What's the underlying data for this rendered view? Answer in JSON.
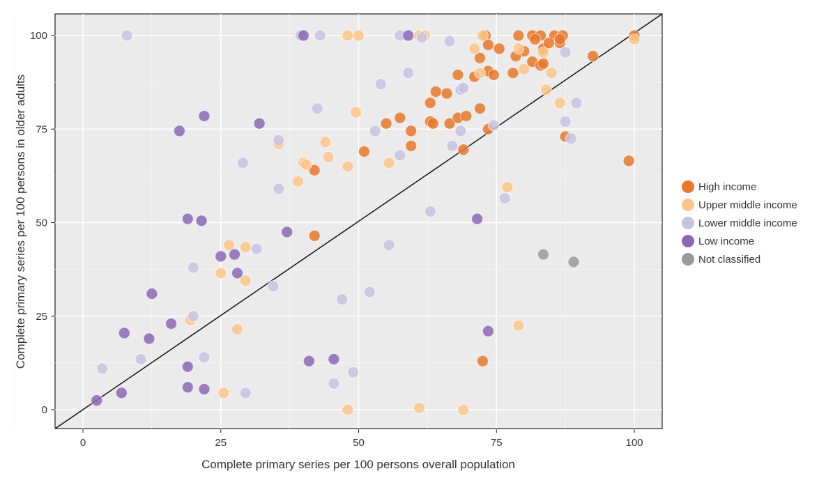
{
  "chart_data": {
    "type": "scatter",
    "title": "",
    "xlabel": "Complete primary series per 100 persons overall population",
    "ylabel": "Complete primary series per 100 persons in older adults",
    "xlim": [
      -5,
      105
    ],
    "ylim": [
      -5,
      106
    ],
    "xticks": [
      0,
      25,
      50,
      75,
      100
    ],
    "yticks": [
      0,
      25,
      50,
      75,
      100
    ],
    "grid": true,
    "reference_line": "y = x",
    "legend_placement": "right",
    "series": [
      {
        "name": "High income",
        "color": "#E8782C",
        "points": [
          [
            73,
            100
          ],
          [
            79,
            100
          ],
          [
            81.5,
            100
          ],
          [
            83,
            100
          ],
          [
            85.5,
            100
          ],
          [
            87,
            100
          ],
          [
            100,
            100
          ],
          [
            73.5,
            97.5
          ],
          [
            75.5,
            96.5
          ],
          [
            80,
            95.8
          ],
          [
            82,
            99
          ],
          [
            83.5,
            96.5
          ],
          [
            84.5,
            98
          ],
          [
            86.5,
            98
          ],
          [
            86.5,
            99
          ],
          [
            72,
            94
          ],
          [
            78.5,
            94.5
          ],
          [
            81.5,
            93
          ],
          [
            83,
            92
          ],
          [
            83.5,
            92.5
          ],
          [
            92.5,
            94.5
          ],
          [
            73.5,
            90.5
          ],
          [
            74.5,
            89.5
          ],
          [
            78,
            90
          ],
          [
            68,
            89.5
          ],
          [
            71,
            89
          ],
          [
            64,
            85
          ],
          [
            66,
            84.5
          ],
          [
            63,
            82
          ],
          [
            57.5,
            78
          ],
          [
            55,
            76.5
          ],
          [
            59.5,
            74.5
          ],
          [
            63,
            77
          ],
          [
            63.5,
            76.5
          ],
          [
            66.5,
            76.5
          ],
          [
            68,
            78
          ],
          [
            69.5,
            78.5
          ],
          [
            72,
            80.5
          ],
          [
            73.5,
            75
          ],
          [
            59.5,
            70.5
          ],
          [
            51,
            69
          ],
          [
            69,
            69.5
          ],
          [
            42,
            64
          ],
          [
            42,
            46.5
          ],
          [
            87.5,
            73
          ],
          [
            99,
            66.5
          ],
          [
            72.5,
            13
          ]
        ]
      },
      {
        "name": "Upper middle  income",
        "color": "#FBC68A",
        "points": [
          [
            48,
            100
          ],
          [
            50,
            100
          ],
          [
            61,
            100
          ],
          [
            62,
            100
          ],
          [
            72.5,
            100
          ],
          [
            71,
            96.5
          ],
          [
            79,
            96.5
          ],
          [
            83.5,
            95.5
          ],
          [
            72,
            90
          ],
          [
            80,
            91
          ],
          [
            85,
            90
          ],
          [
            84,
            85.5
          ],
          [
            86.5,
            82
          ],
          [
            49.5,
            79.5
          ],
          [
            44,
            71.5
          ],
          [
            35.5,
            71
          ],
          [
            40,
            66
          ],
          [
            40.5,
            65.5
          ],
          [
            44.5,
            67.5
          ],
          [
            48,
            65
          ],
          [
            55.5,
            66
          ],
          [
            39,
            61
          ],
          [
            77,
            59.5
          ],
          [
            26.5,
            44
          ],
          [
            29.5,
            43.5
          ],
          [
            25,
            36.5
          ],
          [
            29.5,
            34.5
          ],
          [
            19.5,
            24
          ],
          [
            28,
            21.5
          ],
          [
            25.5,
            4.5
          ],
          [
            48,
            0
          ],
          [
            61,
            0.5
          ],
          [
            69,
            0
          ],
          [
            79,
            22.5
          ],
          [
            100,
            99
          ]
        ]
      },
      {
        "name": "Lower middle income",
        "color": "#C9C3E2",
        "points": [
          [
            8,
            100
          ],
          [
            39.5,
            100
          ],
          [
            43,
            100
          ],
          [
            57.5,
            100
          ],
          [
            61.5,
            99.5
          ],
          [
            66.5,
            98.5
          ],
          [
            59,
            90
          ],
          [
            54,
            87
          ],
          [
            68.5,
            85.5
          ],
          [
            69,
            86
          ],
          [
            68.5,
            74.5
          ],
          [
            42.5,
            80.5
          ],
          [
            53,
            74.5
          ],
          [
            57.5,
            68
          ],
          [
            35.5,
            72
          ],
          [
            67,
            70.5
          ],
          [
            74.5,
            76
          ],
          [
            87.5,
            95.5
          ],
          [
            89.5,
            82
          ],
          [
            87.5,
            77
          ],
          [
            88.5,
            72.5
          ],
          [
            29,
            66
          ],
          [
            35.5,
            59
          ],
          [
            63,
            53
          ],
          [
            76.5,
            56.5
          ],
          [
            20,
            38
          ],
          [
            31.5,
            43
          ],
          [
            55.5,
            44
          ],
          [
            34.5,
            33
          ],
          [
            52,
            31.5
          ],
          [
            47,
            29.5
          ],
          [
            20,
            25
          ],
          [
            22,
            14
          ],
          [
            10.5,
            13.5
          ],
          [
            3.5,
            11
          ],
          [
            29.5,
            4.5
          ],
          [
            45.5,
            7
          ],
          [
            49,
            10
          ]
        ]
      },
      {
        "name": "Low income",
        "color": "#8A68B6",
        "points": [
          [
            40,
            100
          ],
          [
            59,
            100
          ],
          [
            17.5,
            74.5
          ],
          [
            22,
            78.5
          ],
          [
            32,
            76.5
          ],
          [
            19,
            51
          ],
          [
            21.5,
            50.5
          ],
          [
            37,
            47.5
          ],
          [
            25,
            41
          ],
          [
            27.5,
            41.5
          ],
          [
            28,
            36.5
          ],
          [
            12.5,
            31
          ],
          [
            16,
            23
          ],
          [
            7.5,
            20.5
          ],
          [
            12,
            19
          ],
          [
            19,
            11.5
          ],
          [
            19,
            6
          ],
          [
            22,
            5.5
          ],
          [
            7,
            4.5
          ],
          [
            2.5,
            2.5
          ],
          [
            41,
            13
          ],
          [
            45.5,
            13.5
          ],
          [
            71.5,
            51
          ],
          [
            73.5,
            21
          ]
        ]
      },
      {
        "name": "Not classified",
        "color": "#9A9A9A",
        "points": [
          [
            83.5,
            41.5
          ],
          [
            89,
            39.5
          ]
        ]
      }
    ]
  }
}
